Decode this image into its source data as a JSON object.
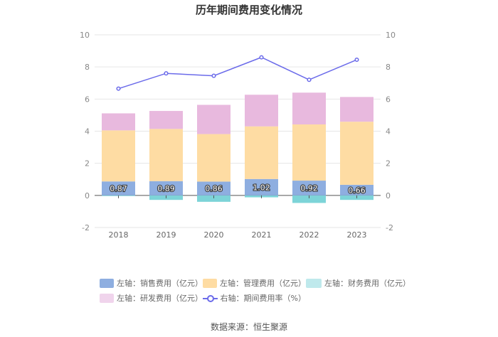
{
  "title": "历年期间费用变化情况",
  "source": "数据来源：恒生聚源",
  "chart_data": {
    "type": "bar",
    "stacked": true,
    "title": "历年期间费用变化情况",
    "categories": [
      "2018",
      "2019",
      "2020",
      "2021",
      "2022",
      "2023"
    ],
    "y_left": {
      "min": -2,
      "max": 10,
      "ticks": [
        "-2",
        "0",
        "2",
        "4",
        "6",
        "8",
        "10"
      ]
    },
    "y_right": {
      "min": -2,
      "max": 10,
      "ticks": [
        "-2",
        "0",
        "2",
        "4",
        "6",
        "8",
        "10"
      ]
    },
    "series": [
      {
        "name": "左轴：销售费用（亿元）",
        "type": "bar",
        "axis": "left",
        "color": "#8eaee0",
        "values": [
          0.87,
          0.89,
          0.86,
          1.02,
          0.92,
          0.66
        ],
        "labels": [
          "0.87",
          "0.89",
          "0.86",
          "1.02",
          "0.92",
          "0.66"
        ]
      },
      {
        "name": "左轴：管理费用（亿元）",
        "type": "bar",
        "axis": "left",
        "color": "#fedca3",
        "values": [
          3.18,
          3.25,
          2.96,
          3.28,
          3.5,
          3.93
        ]
      },
      {
        "name": "左轴：财务费用（亿元）",
        "type": "bar",
        "axis": "left",
        "color": "#7dd4d8",
        "values": [
          -0.04,
          -0.28,
          -0.4,
          -0.12,
          -0.47,
          -0.28
        ]
      },
      {
        "name": "左轴：研发费用（亿元）",
        "type": "bar",
        "axis": "left",
        "color": "#e8b9de",
        "values": [
          1.06,
          1.12,
          1.82,
          1.97,
          1.98,
          1.54
        ]
      },
      {
        "name": "右轴：期间费用率（%）",
        "type": "line",
        "axis": "right",
        "color": "#6b6bea",
        "values": [
          6.65,
          7.6,
          7.45,
          8.6,
          7.2,
          8.45
        ]
      }
    ]
  },
  "legend": [
    {
      "label": "左轴：销售费用（亿元）",
      "color": "#8eaee0",
      "kind": "box"
    },
    {
      "label": "左轴：管理费用（亿元）",
      "color": "#fedca3",
      "kind": "box"
    },
    {
      "label": "左轴：财务费用（亿元）",
      "color": "#bfe9ec",
      "kind": "box"
    },
    {
      "label": "左轴：研发费用（亿元）",
      "color": "#f0d4ec",
      "kind": "box"
    },
    {
      "label": "右轴：期间费用率（%）",
      "color": "#6b6bea",
      "kind": "line"
    }
  ]
}
